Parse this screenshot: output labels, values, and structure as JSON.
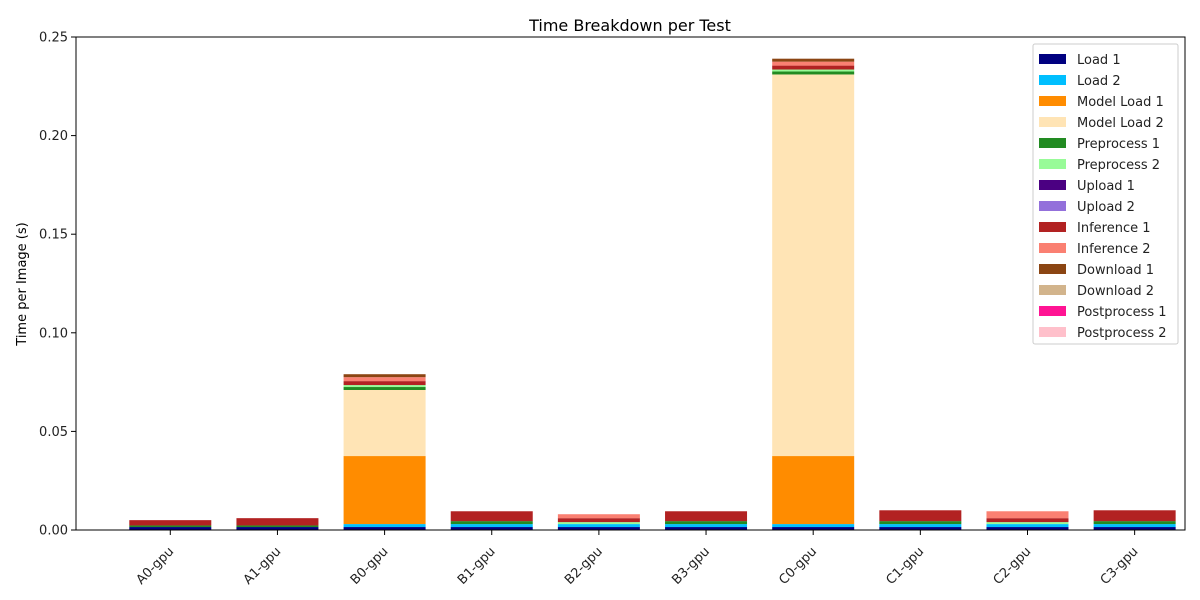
{
  "chart_data": {
    "type": "bar",
    "stacked": true,
    "title": "Time Breakdown per Test",
    "xlabel": "",
    "ylabel": "Time per Image (s)",
    "ylim": [
      0,
      0.25
    ],
    "yticks": [
      0.0,
      0.05,
      0.1,
      0.15,
      0.2,
      0.25
    ],
    "ytick_labels": [
      "0.00",
      "0.05",
      "0.10",
      "0.15",
      "0.20",
      "0.25"
    ],
    "grid": false,
    "legend_position": "top-right",
    "categories": [
      "A0-gpu",
      "A1-gpu",
      "B0-gpu",
      "B1-gpu",
      "B2-gpu",
      "B3-gpu",
      "C0-gpu",
      "C1-gpu",
      "C2-gpu",
      "C3-gpu"
    ],
    "series": [
      {
        "name": "Load 1",
        "color": "#000080",
        "values": [
          0.0015,
          0.0015,
          0.0015,
          0.0015,
          0.0015,
          0.0015,
          0.0015,
          0.0015,
          0.0015,
          0.0015
        ]
      },
      {
        "name": "Load 2",
        "color": "#00BFFF",
        "values": [
          0.0,
          0.0,
          0.0015,
          0.0015,
          0.0015,
          0.0015,
          0.0015,
          0.0015,
          0.0015,
          0.0015
        ]
      },
      {
        "name": "Model Load 1",
        "color": "#FF8C00",
        "values": [
          0.0,
          0.0,
          0.0345,
          0.0,
          0.0,
          0.0,
          0.0345,
          0.0,
          0.0,
          0.0
        ]
      },
      {
        "name": "Model Load 2",
        "color": "#FFE4B5",
        "values": [
          0.0,
          0.0,
          0.0335,
          0.0,
          0.0,
          0.0,
          0.1935,
          0.0,
          0.0,
          0.0
        ]
      },
      {
        "name": "Preprocess 1",
        "color": "#228B22",
        "values": [
          0.0008,
          0.0008,
          0.0015,
          0.0015,
          0.0,
          0.0015,
          0.0015,
          0.0015,
          0.0,
          0.0015
        ]
      },
      {
        "name": "Preprocess 2",
        "color": "#98FB98",
        "values": [
          0.0,
          0.0,
          0.001,
          0.0,
          0.001,
          0.0,
          0.001,
          0.0,
          0.001,
          0.0
        ]
      },
      {
        "name": "Upload 1",
        "color": "#4B0082",
        "values": [
          0.0,
          0.0,
          0.0,
          0.0,
          0.0,
          0.0,
          0.0,
          0.0,
          0.0,
          0.0
        ]
      },
      {
        "name": "Upload 2",
        "color": "#9370DB",
        "values": [
          0.0,
          0.0,
          0.0,
          0.0,
          0.0,
          0.0,
          0.0,
          0.0,
          0.0,
          0.0
        ]
      },
      {
        "name": "Inference 1",
        "color": "#B22222",
        "values": [
          0.0027,
          0.0037,
          0.002,
          0.005,
          0.0,
          0.005,
          0.002,
          0.0055,
          0.0,
          0.0055
        ]
      },
      {
        "name": "Inference 2",
        "color": "#FA8072",
        "values": [
          0.0,
          0.0,
          0.002,
          0.0,
          0.002,
          0.0,
          0.002,
          0.0,
          0.0035,
          0.0
        ]
      },
      {
        "name": "Download 1",
        "color": "#8B4513",
        "values": [
          0.0,
          0.0,
          0.0015,
          0.0,
          0.0,
          0.0,
          0.0015,
          0.0,
          0.0,
          0.0
        ]
      },
      {
        "name": "Download 2",
        "color": "#D2B48C",
        "values": [
          0.0,
          0.0,
          0.0,
          0.0,
          0.0,
          0.0,
          0.0,
          0.0,
          0.0,
          0.0
        ]
      },
      {
        "name": "Postprocess 1",
        "color": "#FF1493",
        "values": [
          0.0,
          0.0,
          0.0,
          0.0,
          0.0,
          0.0,
          0.0,
          0.0,
          0.0,
          0.0
        ]
      },
      {
        "name": "Postprocess 2",
        "color": "#FFC0CB",
        "values": [
          0.0,
          0.0,
          0.0,
          0.0,
          0.0,
          0.0,
          0.0,
          0.0,
          0.0,
          0.0
        ]
      }
    ],
    "extra_segments": [
      {
        "category": "B2-gpu",
        "series": "Inference 1",
        "value": 0.002
      },
      {
        "category": "C2-gpu",
        "series": "Inference 1",
        "value": 0.002
      }
    ]
  }
}
